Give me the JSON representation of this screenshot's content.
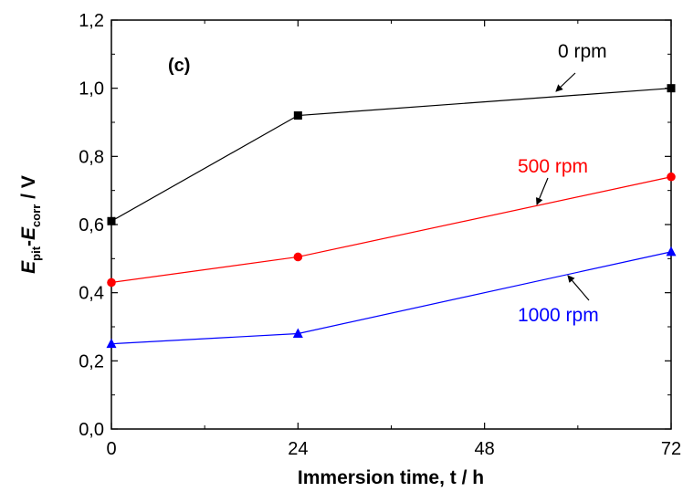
{
  "chart_data": {
    "type": "line",
    "panel_label": "(c)",
    "xlabel": "Immersion time, t / h",
    "ylabel": {
      "e1": "E",
      "s1": "pit",
      "dash": "-",
      "e2": "E",
      "s2": "corr",
      "unit": " / V"
    },
    "xlim": [
      0,
      72
    ],
    "ylim": [
      0,
      1.2
    ],
    "xticks": [
      0,
      24,
      48,
      72
    ],
    "xtick_labels": [
      "0",
      "24",
      "48",
      "72"
    ],
    "yticks": [
      0,
      0.2,
      0.4,
      0.6,
      0.8,
      1.0,
      1.2
    ],
    "ytick_labels": [
      "0,0",
      "0,2",
      "0,4",
      "0,6",
      "0,8",
      "1,0",
      "1,2"
    ],
    "x": [
      0,
      24,
      72
    ],
    "series": [
      {
        "name": "0 rpm",
        "values": [
          0.61,
          0.92,
          1.0
        ],
        "color": "#000000",
        "marker": "square"
      },
      {
        "name": "500 rpm",
        "values": [
          0.43,
          0.505,
          0.74
        ],
        "color": "#ff0000",
        "marker": "circle"
      },
      {
        "name": "1000 rpm",
        "values": [
          0.25,
          0.28,
          0.52
        ],
        "color": "#0000ff",
        "marker": "triangle"
      }
    ],
    "grid": false,
    "legend": "annotations with arrows"
  }
}
